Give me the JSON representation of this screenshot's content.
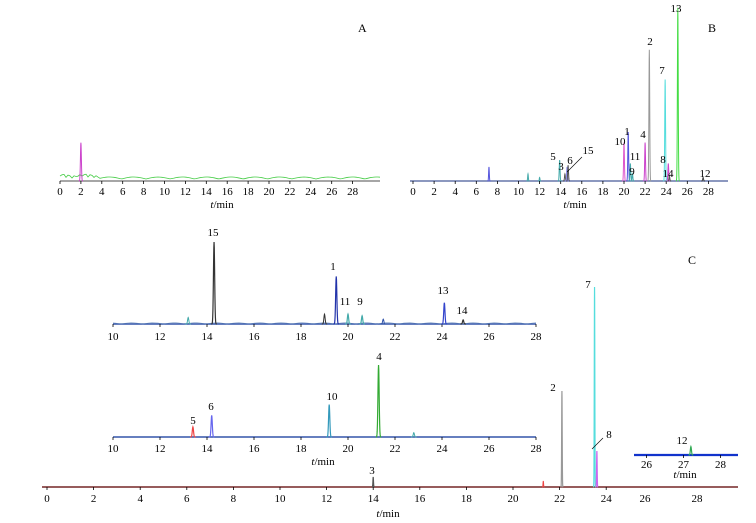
{
  "chart_data": [
    {
      "panel": "A",
      "type": "line",
      "xlabel_var": "t",
      "xlabel_unit": "/min",
      "xlim": [
        0,
        30
      ],
      "ticks": [
        "0",
        "2",
        "4",
        "6",
        "8",
        "10",
        "12",
        "14",
        "16",
        "18",
        "20",
        "22",
        "24",
        "26",
        "28"
      ],
      "series": [
        {
          "color": "#cc44cc",
          "peaks": [
            {
              "x": 2.0,
              "h": 0.48
            }
          ]
        },
        {
          "color": "#44cc44",
          "peaks": []
        }
      ]
    },
    {
      "panel": "B",
      "type": "line",
      "xlabel_var": "t",
      "xlabel_unit": "/min",
      "xlim": [
        0,
        30
      ],
      "ticks": [
        "0",
        "2",
        "4",
        "6",
        "8",
        "10",
        "12",
        "14",
        "16",
        "18",
        "20",
        "22",
        "24",
        "26",
        "28"
      ],
      "peaks": [
        {
          "label": "5",
          "x": 13.9,
          "h": 0.12,
          "color": "#44aaaa"
        },
        {
          "label": "3",
          "x": 14.4,
          "h": 0.04,
          "color": "#555555"
        },
        {
          "label": "6",
          "x": 14.6,
          "h": 0.08,
          "color": "#8888ee"
        },
        {
          "label": "15",
          "x": 14.7,
          "h": 0.09,
          "color": "#555555"
        },
        {
          "label": "10",
          "x": 20.0,
          "h": 0.22,
          "color": "#dd55cc"
        },
        {
          "label": "1",
          "x": 20.4,
          "h": 0.28,
          "color": "#5555dd"
        },
        {
          "label": "11",
          "x": 20.6,
          "h": 0.1,
          "color": "#44aaaa"
        },
        {
          "label": "9",
          "x": 20.8,
          "h": 0.04,
          "color": "#44aaaa"
        },
        {
          "label": "4",
          "x": 22.0,
          "h": 0.22,
          "color": "#cc44cc"
        },
        {
          "label": "2",
          "x": 22.4,
          "h": 0.75,
          "color": "#999999"
        },
        {
          "label": "7",
          "x": 23.9,
          "h": 0.58,
          "color": "#55dddd"
        },
        {
          "label": "8",
          "x": 24.2,
          "h": 0.1,
          "color": "#cc44cc"
        },
        {
          "label": "14",
          "x": 24.3,
          "h": 0.03,
          "color": "#555555"
        },
        {
          "label": "13",
          "x": 25.1,
          "h": 0.99,
          "color": "#44dd44"
        },
        {
          "label": "12",
          "x": 27.5,
          "h": 0.02,
          "color": "#444444"
        }
      ],
      "unlabeled": [
        {
          "x": 7.2,
          "h": 0.08,
          "color": "#5555dd"
        },
        {
          "x": 10.9,
          "h": 0.04,
          "color": "#44aaaa"
        },
        {
          "x": 12.0,
          "h": 0.02,
          "color": "#44aaaa"
        }
      ]
    },
    {
      "panel": "C",
      "type": "line",
      "traces": [
        {
          "id": "upper",
          "xlim": [
            10,
            28
          ],
          "ticks": [
            "10",
            "12",
            "14",
            "16",
            "18",
            "20",
            "22",
            "24",
            "26",
            "28"
          ],
          "color": "#3355aa",
          "peaks": [
            {
              "label": "15",
              "x": 14.3,
              "h": 1.0,
              "color": "#333333"
            },
            {
              "label": "1",
              "x": 19.5,
              "h": 0.58,
              "color": "#2233aa"
            },
            {
              "label": "11",
              "x": 20.0,
              "h": 0.12,
              "color": "#44aaaa"
            },
            {
              "label": "9",
              "x": 20.6,
              "h": 0.1,
              "color": "#44aaaa"
            },
            {
              "label": "13",
              "x": 24.1,
              "h": 0.26,
              "color": "#3344cc"
            },
            {
              "label": "14",
              "x": 24.9,
              "h": 0.05,
              "color": "#333333"
            }
          ],
          "unlabeled": [
            {
              "x": 13.2,
              "h": 0.08,
              "color": "#44aaaa"
            },
            {
              "x": 19.0,
              "h": 0.12,
              "color": "#333333"
            },
            {
              "x": 21.5,
              "h": 0.06,
              "color": "#3355aa"
            }
          ]
        },
        {
          "id": "middle",
          "xlim": [
            10,
            28
          ],
          "ticks": [
            "10",
            "12",
            "14",
            "16",
            "18",
            "20",
            "22",
            "24",
            "26",
            "28"
          ],
          "color": "#3355aa",
          "xlabel_var": "t",
          "xlabel_unit": "/min",
          "peaks": [
            {
              "label": "5",
              "x": 13.4,
              "h": 0.14,
              "color": "#ee4444"
            },
            {
              "label": "6",
              "x": 14.2,
              "h": 0.3,
              "color": "#6666ee"
            },
            {
              "label": "10",
              "x": 19.2,
              "h": 0.45,
              "color": "#3399bb"
            },
            {
              "label": "4",
              "x": 21.3,
              "h": 1.0,
              "color": "#33aa33"
            }
          ],
          "unlabeled": [
            {
              "x": 22.8,
              "h": 0.06,
              "color": "#44aaaa"
            }
          ]
        },
        {
          "id": "lower",
          "xlim": [
            0,
            30
          ],
          "ticks": [
            "0",
            "2",
            "4",
            "6",
            "8",
            "10",
            "12",
            "14",
            "16",
            "18",
            "20",
            "22",
            "24"
          ],
          "color": "#884444",
          "xlabel_var": "t",
          "xlabel_unit": "/min",
          "peaks": [
            {
              "label": "3",
              "x": 14.0,
              "h": 0.05,
              "color": "#555555"
            },
            {
              "label": "2",
              "x": 22.1,
              "h": 0.48,
              "color": "#999999"
            },
            {
              "label": "7",
              "x": 23.5,
              "h": 1.0,
              "color": "#55dddd"
            },
            {
              "label": "8",
              "x": 23.6,
              "h": 0.18,
              "color": "#cc66ee"
            }
          ],
          "unlabeled": [
            {
              "x": 21.3,
              "h": 0.03,
              "color": "#ee4444"
            }
          ]
        },
        {
          "id": "inset",
          "xlim": [
            25.5,
            29
          ],
          "ticks": [
            "26",
            "27",
            "28"
          ],
          "color": "#1133cc",
          "xlabel_var": "t",
          "xlabel_unit": "/min",
          "peaks": [
            {
              "label": "12",
              "x": 27.2,
              "h": 0.6,
              "color": "#33aa55"
            }
          ],
          "unlabeled": []
        }
      ],
      "extra_ticks": [
        "26",
        "28"
      ]
    }
  ],
  "panel_labels": {
    "a": "A",
    "b": "B",
    "c": "C"
  }
}
